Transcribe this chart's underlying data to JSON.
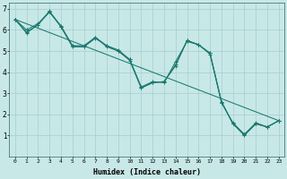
{
  "xlabel": "Humidex (Indice chaleur)",
  "xlim": [
    -0.5,
    23.5
  ],
  "ylim": [
    0,
    7.3
  ],
  "xticks": [
    0,
    1,
    2,
    3,
    4,
    5,
    6,
    7,
    8,
    9,
    10,
    11,
    12,
    13,
    14,
    15,
    16,
    17,
    18,
    19,
    20,
    21,
    22,
    23
  ],
  "yticks": [
    1,
    2,
    3,
    4,
    5,
    6,
    7
  ],
  "bg_color": "#c8e8e8",
  "line_color": "#1a7a6e",
  "grid_color": "#a8cccc",
  "series": [
    {
      "x": [
        0,
        1,
        2,
        3,
        4,
        5,
        6,
        7,
        8,
        9,
        10,
        11,
        12,
        13,
        14,
        15,
        16,
        17,
        18,
        19,
        20,
        21,
        22,
        23
      ],
      "y": [
        6.5,
        5.9,
        6.25,
        6.85,
        6.15,
        5.25,
        5.2,
        5.65,
        5.2,
        5.0,
        4.55,
        3.25,
        3.5,
        3.55,
        4.3,
        5.5,
        5.3,
        4.85,
        2.6,
        1.55,
        1.05,
        1.55,
        1.4,
        1.7
      ]
    },
    {
      "x": [
        0,
        1,
        2,
        3,
        4,
        5,
        6,
        7,
        8,
        9,
        10,
        11,
        12,
        13,
        14,
        15,
        16,
        17,
        18,
        19,
        20,
        21,
        22,
        23
      ],
      "y": [
        6.5,
        6.0,
        6.3,
        6.85,
        6.2,
        5.25,
        5.25,
        5.65,
        5.25,
        5.05,
        4.6,
        3.3,
        3.55,
        3.5,
        4.5,
        5.45,
        5.3,
        4.9,
        2.55,
        1.6,
        1.05,
        1.6,
        1.4,
        1.7
      ]
    },
    {
      "x": [
        0,
        1,
        2,
        3,
        4,
        5,
        6,
        7,
        8,
        9,
        10,
        11,
        12,
        13,
        14,
        15,
        16,
        17,
        18,
        19,
        20,
        21,
        22,
        23
      ],
      "y": [
        6.5,
        5.85,
        6.25,
        6.9,
        6.15,
        5.2,
        5.2,
        5.6,
        5.25,
        5.0,
        4.6,
        3.25,
        3.5,
        3.55,
        4.35,
        5.5,
        5.3,
        4.9,
        2.6,
        1.55,
        1.0,
        1.55,
        1.4,
        1.7
      ]
    },
    {
      "x": [
        0,
        23
      ],
      "y": [
        6.5,
        1.7
      ]
    }
  ]
}
